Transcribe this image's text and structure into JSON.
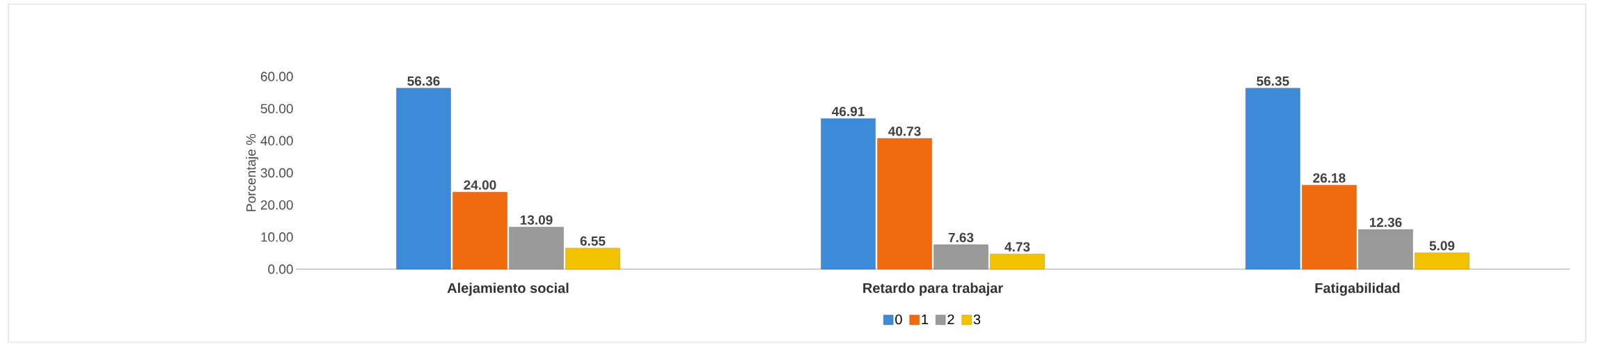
{
  "chart_data": {
    "type": "bar",
    "ylabel": "Porcentaje %",
    "categories": [
      "Alejamiento social",
      "Retardo para trabajar",
      "Fatigabilidad"
    ],
    "series": [
      {
        "name": "0",
        "color": "#3c8ad8",
        "values": [
          56.36,
          46.91,
          56.35
        ],
        "value_labels": [
          "56.36",
          "46.91",
          "56.35"
        ]
      },
      {
        "name": "1",
        "color": "#f06a10",
        "values": [
          24.0,
          40.73,
          26.18
        ],
        "value_labels": [
          "24.00",
          "40.73",
          "26.18"
        ]
      },
      {
        "name": "2",
        "color": "#9a9a9a",
        "values": [
          13.09,
          7.63,
          12.36
        ],
        "value_labels": [
          "13.09",
          "7.63",
          "12.36"
        ]
      },
      {
        "name": "3",
        "color": "#f2c200",
        "values": [
          6.55,
          4.73,
          5.09
        ],
        "value_labels": [
          "6.55",
          "4.73",
          "5.09"
        ]
      }
    ],
    "ylim": [
      0,
      60
    ],
    "yticks": [
      {
        "value": 0,
        "label": "0.00"
      },
      {
        "value": 10,
        "label": "10.00"
      },
      {
        "value": 20,
        "label": "20.00"
      },
      {
        "value": 30,
        "label": "30.00"
      },
      {
        "value": 40,
        "label": "40.00"
      },
      {
        "value": 50,
        "label": "50.00"
      },
      {
        "value": 60,
        "label": "60.00"
      }
    ],
    "grid": false,
    "legend": "bottom"
  }
}
